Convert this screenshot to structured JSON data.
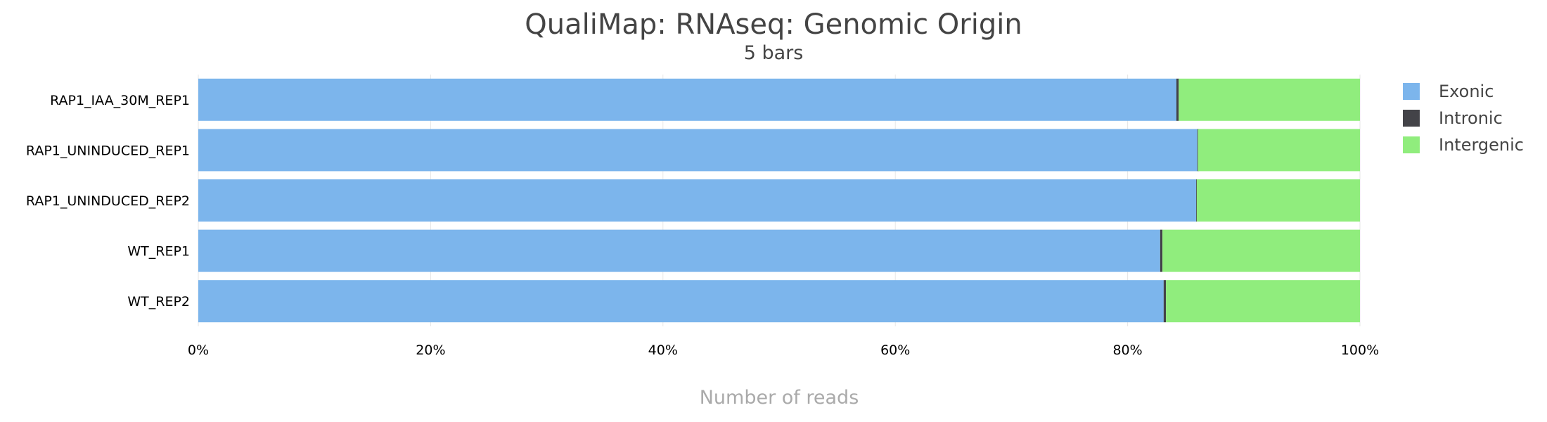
{
  "chart_data": {
    "type": "bar",
    "orientation": "horizontal",
    "stacked": true,
    "percentage": true,
    "title": "QualiMap: RNAseq: Genomic Origin",
    "subtitle": "5 bars",
    "xlabel": "Number of reads",
    "ylabel": "",
    "xlim": [
      0,
      100
    ],
    "x_ticks": [
      "0%",
      "20%",
      "40%",
      "60%",
      "80%",
      "100%"
    ],
    "x_tick_values": [
      0,
      20,
      40,
      60,
      80,
      100
    ],
    "grid": true,
    "legend_position": "right",
    "categories": [
      "RAP1_IAA_30M_REP1",
      "RAP1_UNINDUCED_REP1",
      "RAP1_UNINDUCED_REP2",
      "WT_REP1",
      "WT_REP2"
    ],
    "series": [
      {
        "name": "Exonic",
        "color": "#7cb5ec",
        "values": [
          84.2,
          86.0,
          85.9,
          82.8,
          83.1
        ]
      },
      {
        "name": "Intronic",
        "color": "#434348",
        "values": [
          0.2,
          0.05,
          0.05,
          0.2,
          0.2
        ]
      },
      {
        "name": "Intergenic",
        "color": "#90ed7d",
        "values": [
          15.6,
          13.95,
          14.05,
          17.0,
          16.7
        ]
      }
    ]
  }
}
